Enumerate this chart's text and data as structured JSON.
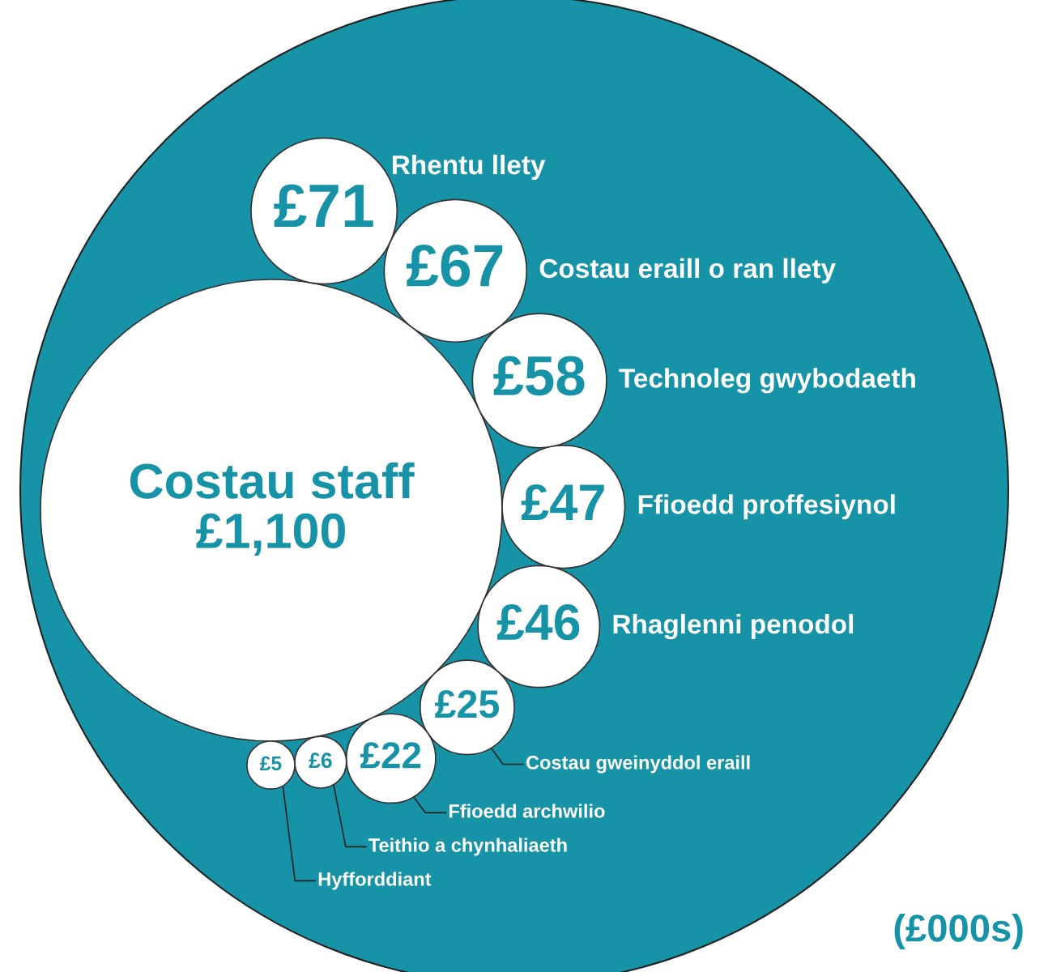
{
  "chart_data": {
    "type": "other",
    "categories": [
      "Costau staff",
      "Rhentu llety",
      "Costau eraill o ran llety",
      "Technoleg gwybodaeth",
      "Ffioedd proffesiynol",
      "Rhaglenni penodol",
      "Costau gweinyddol eraill",
      "Ffioedd archwilio",
      "Teithio a chynhaliaeth",
      "Hyfforddiant"
    ],
    "values": [
      1100,
      71,
      67,
      58,
      47,
      46,
      25,
      22,
      6,
      5
    ],
    "value_labels": [
      "£1,100",
      "£71",
      "£67",
      "£58",
      "£47",
      "£46",
      "£25",
      "£22",
      "£6",
      "£5"
    ],
    "color": "#ffffff",
    "annotations": [
      "(£000s)"
    ]
  }
}
